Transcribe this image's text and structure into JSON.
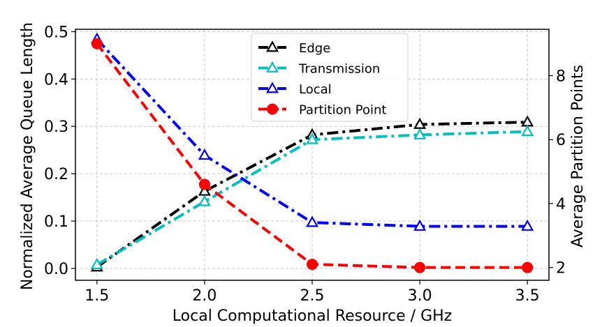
{
  "chart_data": {
    "type": "line",
    "xlabel": "Local Computational Resource / GHz",
    "ylabel": "Normalized Average Queue Length",
    "y2label": "Average Partition Points",
    "x": [
      1.5,
      2.0,
      2.5,
      3.0,
      3.5
    ],
    "x_ticks": [
      "1.5",
      "2.0",
      "2.5",
      "3.0",
      "3.5"
    ],
    "xlim": [
      1.4,
      3.6
    ],
    "ylim": [
      -0.025,
      0.505
    ],
    "y_ticks": [
      "0.0",
      "0.1",
      "0.2",
      "0.3",
      "0.4",
      "0.5"
    ],
    "y2lim": [
      1.6,
      9.45
    ],
    "y2_ticks": [
      "2",
      "4",
      "6",
      "8"
    ],
    "grid": true,
    "legend_position": "top-center",
    "series": [
      {
        "name": "Edge",
        "axis": "left",
        "color": "#000000",
        "dash": "dashdot",
        "marker": "triangle-open",
        "values": [
          0.003,
          0.163,
          0.282,
          0.304,
          0.309
        ]
      },
      {
        "name": "Transmission",
        "axis": "left",
        "color": "#00bfbf",
        "dash": "dashdot",
        "marker": "triangle-open",
        "values": [
          0.008,
          0.141,
          0.272,
          0.282,
          0.289
        ]
      },
      {
        "name": "Local",
        "axis": "left",
        "color": "#0000ff",
        "dash": "dashdot",
        "marker": "triangle-open",
        "values": [
          0.484,
          0.239,
          0.097,
          0.089,
          0.089
        ]
      },
      {
        "name": "Partition Point",
        "axis": "right",
        "color": "#ff0000",
        "dash": "dashed",
        "marker": "circle-filled",
        "values": [
          9.0,
          4.6,
          2.1,
          2.0,
          2.0
        ]
      }
    ]
  }
}
